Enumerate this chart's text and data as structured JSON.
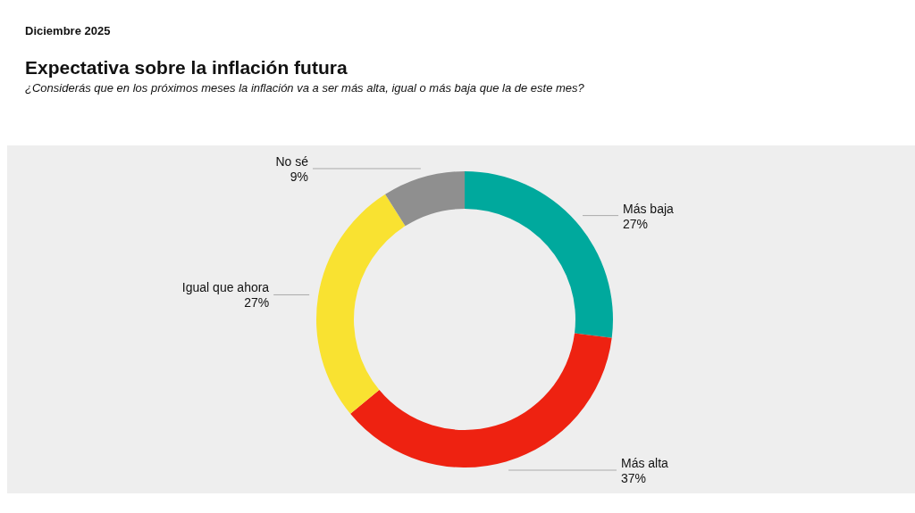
{
  "chart_data": {
    "type": "donut",
    "title": "Expectativa sobre la inflación futura",
    "subtitle": "¿Considerás que en los próximos meses la inflación va a ser más alta, igual o más baja que la de este mes?",
    "annotations": [
      "Diciembre 2025"
    ],
    "categories": [
      "Más baja",
      "Más alta",
      "Igual que ahora",
      "No sé"
    ],
    "values": [
      27,
      37,
      27,
      9
    ],
    "value_labels": [
      "27%",
      "37%",
      "27%",
      "9%"
    ],
    "colors": [
      "#00a99d",
      "#ee2211",
      "#f9e231",
      "#8f8f8f"
    ],
    "legend": false
  }
}
